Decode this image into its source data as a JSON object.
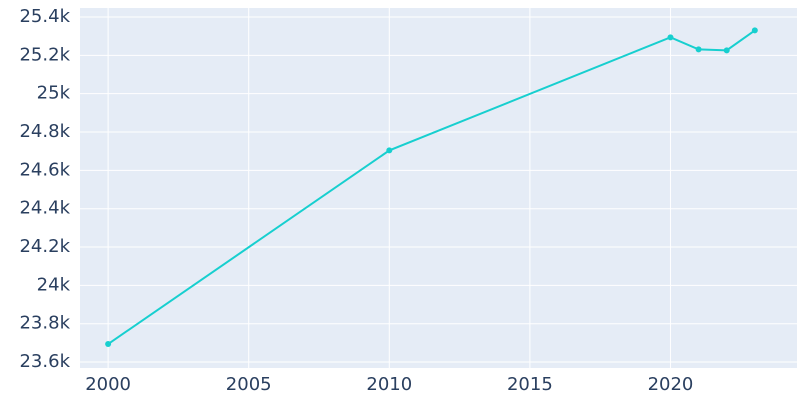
{
  "chart_data": {
    "type": "line",
    "x": [
      2000,
      2010,
      2020,
      2021,
      2022,
      2023
    ],
    "series": [
      {
        "color": "#17cfcf",
        "values": [
          23694,
          24704,
          25294,
          25231,
          25226,
          25330
        ]
      }
    ],
    "xlim": [
      1999,
      2024.5
    ],
    "xticks": [
      2000,
      2005,
      2010,
      2015,
      2020
    ],
    "ylim": [
      23569,
      25447
    ],
    "yticks": [
      {
        "value": 23600,
        "label": "23.6k"
      },
      {
        "value": 23800,
        "label": "23.8k"
      },
      {
        "value": 24000,
        "label": "24k"
      },
      {
        "value": 24200,
        "label": "24.2k"
      },
      {
        "value": 24400,
        "label": "24.4k"
      },
      {
        "value": 24600,
        "label": "24.6k"
      },
      {
        "value": 24800,
        "label": "24.8k"
      },
      {
        "value": 25000,
        "label": "25k"
      },
      {
        "value": 25200,
        "label": "25.2k"
      },
      {
        "value": 25400,
        "label": "25.4k"
      }
    ],
    "grid": true
  }
}
